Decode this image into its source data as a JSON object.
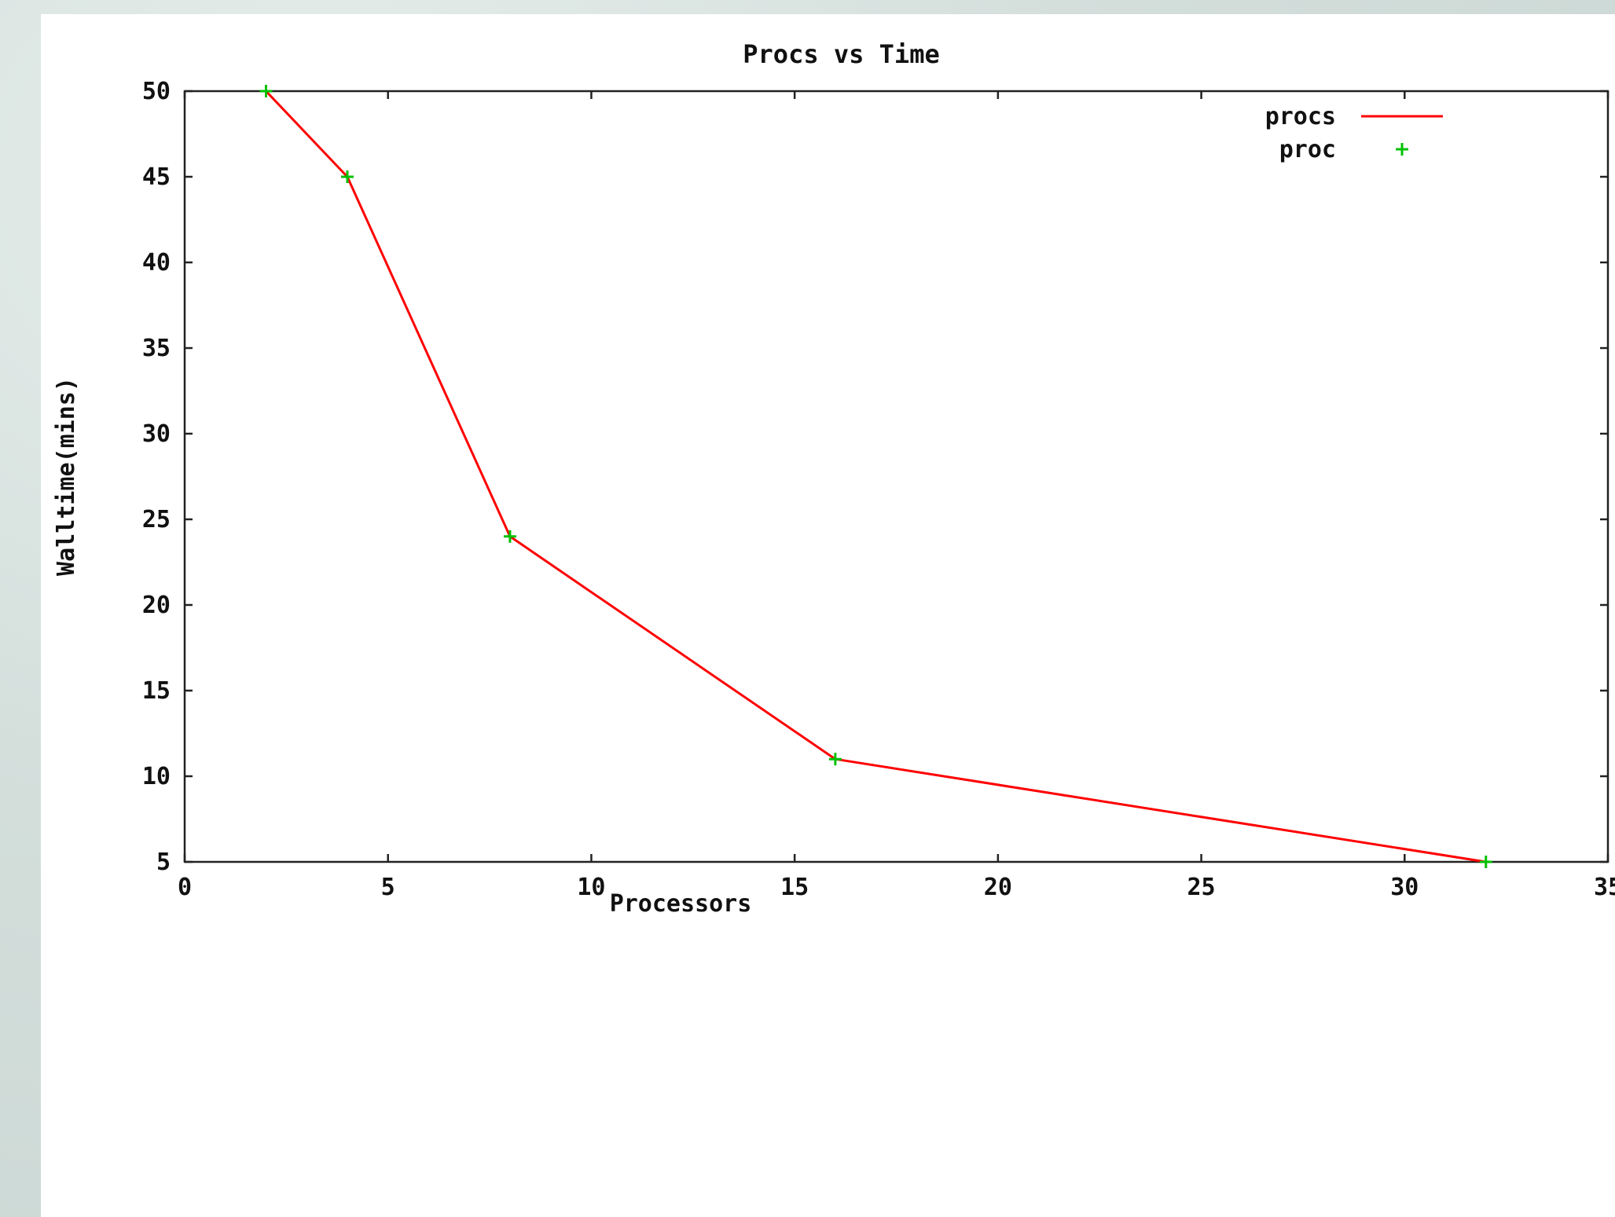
{
  "chart_data": {
    "type": "line",
    "title": "Procs vs Time",
    "xlabel": "Processors",
    "ylabel": "Walltime(mins)",
    "xlim": [
      0,
      35
    ],
    "ylim": [
      5,
      50
    ],
    "xticks": [
      0,
      5,
      10,
      15,
      20,
      25,
      30,
      35
    ],
    "yticks": [
      5,
      10,
      15,
      20,
      25,
      30,
      35,
      40,
      45,
      50
    ],
    "x": [
      2,
      4,
      8,
      16,
      32
    ],
    "series": [
      {
        "name": "procs",
        "style": "line",
        "color": "#ff0000",
        "values": [
          50,
          45,
          24,
          11,
          5
        ]
      },
      {
        "name": "proc",
        "style": "points",
        "marker": "plus",
        "color": "#00c000",
        "values": [
          50,
          45,
          24,
          11,
          5
        ]
      }
    ],
    "legend_position": "top-right",
    "grid": false
  }
}
